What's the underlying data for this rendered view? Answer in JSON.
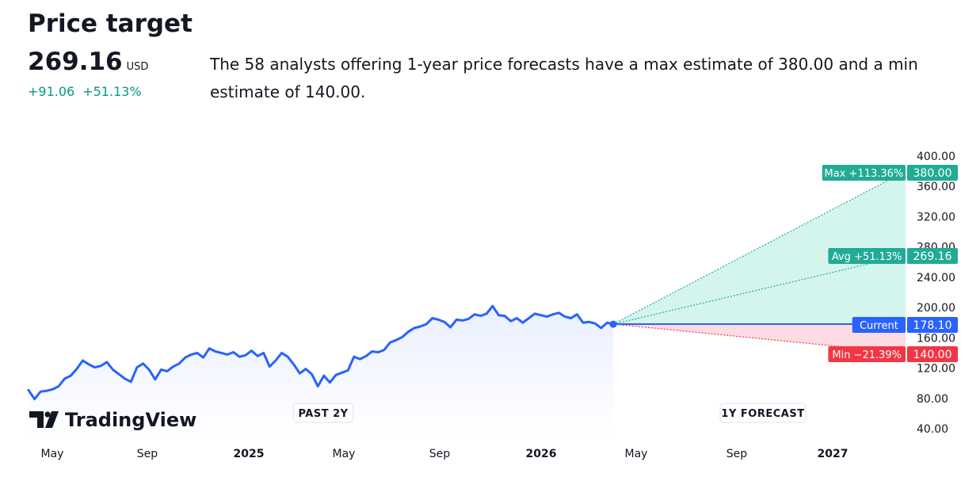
{
  "header": {
    "title": "Price target",
    "price": "269.16",
    "currency": "USD",
    "change_abs": "+91.06",
    "change_pct": "+51.13%",
    "description": "The 58 analysts offering 1-year price forecasts have a max estimate of 380.00 and a min estimate of 140.00."
  },
  "logo": {
    "text": "TradingView"
  },
  "colors": {
    "line": "#2962ff",
    "max": "#22ab94",
    "avg": "#22ab94",
    "current": "#2962ff",
    "min": "#f23645",
    "up_area": "#d4f5ee",
    "down_area": "#fcdbe3",
    "text_green": "#089981"
  },
  "chart_data": {
    "type": "line",
    "x_axis_labels": [
      "May",
      "Sep",
      "2025",
      "May",
      "Sep",
      "2026",
      "May",
      "Sep",
      "2027"
    ],
    "y_ticks": [
      "400.00",
      "360.00",
      "320.00",
      "280.00",
      "240.00",
      "200.00",
      "160.00",
      "120.00",
      "80.00",
      "40.00"
    ],
    "ylim": [
      40,
      400
    ],
    "section_labels": {
      "past": "PAST 2Y",
      "forecast": "1Y FORECAST"
    },
    "series": [
      {
        "values": [
          91,
          79,
          89,
          90,
          92,
          96,
          106,
          110,
          119,
          130,
          125,
          121,
          123,
          128,
          118,
          112,
          106,
          102,
          121,
          126,
          118,
          105,
          118,
          116,
          122,
          126,
          134,
          138,
          140,
          134,
          146,
          142,
          140,
          138,
          141,
          135,
          137,
          143,
          136,
          140,
          122,
          130,
          140,
          135,
          125,
          113,
          119,
          112,
          96,
          110,
          101,
          111,
          114,
          117,
          135,
          132,
          136,
          142,
          141,
          144,
          154,
          157,
          161,
          168,
          173,
          175,
          178,
          186,
          184,
          181,
          174,
          184,
          183,
          185,
          191,
          189,
          192,
          202,
          190,
          189,
          182,
          186,
          180,
          186,
          192,
          190,
          188,
          191,
          193,
          188,
          186,
          191,
          180,
          181,
          179,
          173,
          180,
          178
        ]
      }
    ],
    "forecast": {
      "current": {
        "label": "Current",
        "value": "178.10"
      },
      "max": {
        "label": "Max +113.36%",
        "value": "380.00"
      },
      "avg": {
        "label": "Avg +51.13%",
        "value": "269.16"
      },
      "min": {
        "label": "Min −21.39%",
        "value": "140.00"
      }
    }
  }
}
